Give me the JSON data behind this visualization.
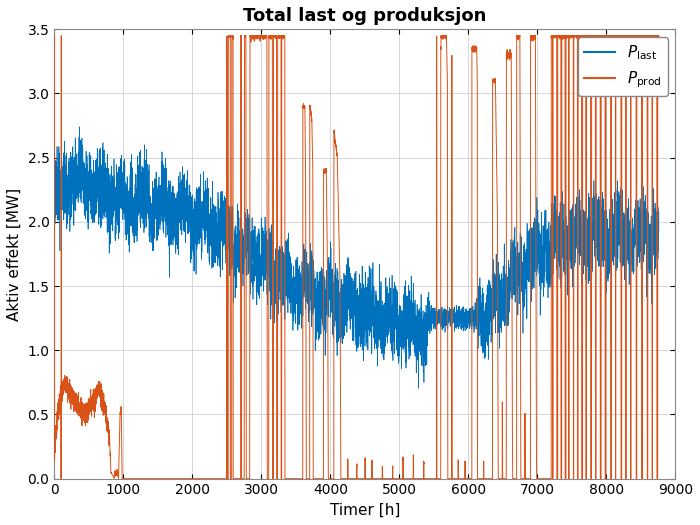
{
  "title": "Total last og produksjon",
  "xlabel": "Timer [h]",
  "ylabel": "Aktiv effekt [MW]",
  "xlim": [
    0,
    9000
  ],
  "ylim": [
    0,
    3.5
  ],
  "yticks": [
    0,
    0.5,
    1.0,
    1.5,
    2.0,
    2.5,
    3.0,
    3.5
  ],
  "xticks": [
    0,
    1000,
    2000,
    3000,
    4000,
    5000,
    6000,
    7000,
    8000,
    9000
  ],
  "color_last": "#0072BD",
  "color_prod": "#D95319",
  "legend_loc": "upper right",
  "grid_color": "#D0D0D0",
  "linewidth_last": 0.5,
  "linewidth_prod": 0.7,
  "figsize": [
    7.0,
    5.25
  ],
  "dpi": 100,
  "title_fontsize": 13,
  "label_fontsize": 11,
  "tick_fontsize": 10,
  "legend_fontsize": 11
}
